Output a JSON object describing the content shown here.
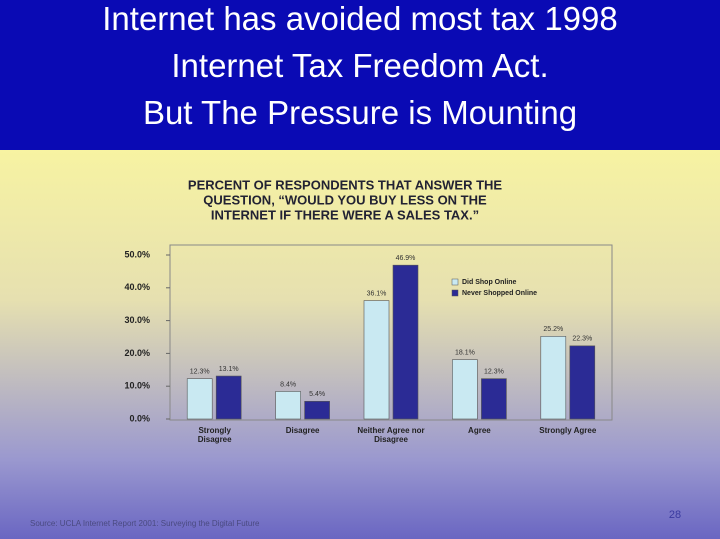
{
  "slide": {
    "title_lines": [
      "Internet has avoided most tax 1998",
      "Internet Tax Freedom Act.",
      "But The Pressure is Mounting"
    ],
    "source": "Source:  UCLA Internet Report 2001: Surveying the Digital Future",
    "page_number": "28"
  },
  "chart_data": {
    "type": "bar",
    "title": [
      "PERCENT OF RESPONDENTS THAT ANSWER THE",
      "QUESTION, “WOULD YOU BUY LESS ON THE",
      "INTERNET IF THERE WERE A SALES TAX.”"
    ],
    "categories": [
      "Strongly Disagree",
      "Disagree",
      "Neither Agree nor Disagree",
      "Agree",
      "Strongly Agree"
    ],
    "series": [
      {
        "name": "Did Shop Online",
        "color": "#c9e9f2",
        "values": [
          12.3,
          8.4,
          36.1,
          18.1,
          25.2
        ],
        "value_labels": [
          "12.3%",
          "8.4%",
          "36.1%",
          "18.1%",
          "25.2%"
        ]
      },
      {
        "name": "Never Shopped Online",
        "color": "#2b2b95",
        "values": [
          13.1,
          5.4,
          46.9,
          12.3,
          22.3
        ],
        "value_labels": [
          "13.1%",
          "5.4%",
          "46.9%",
          "12.3%",
          "22.3%"
        ]
      }
    ],
    "ylim": [
      0,
      50
    ],
    "yticks": [
      {
        "value": 0,
        "label": "0.0%"
      },
      {
        "value": 10,
        "label": "10.0%"
      },
      {
        "value": 20,
        "label": "20.0%"
      },
      {
        "value": 30,
        "label": "30.0%"
      },
      {
        "value": 40,
        "label": "40.0%"
      },
      {
        "value": 50,
        "label": "50.0%"
      }
    ],
    "legend": "upper right"
  }
}
